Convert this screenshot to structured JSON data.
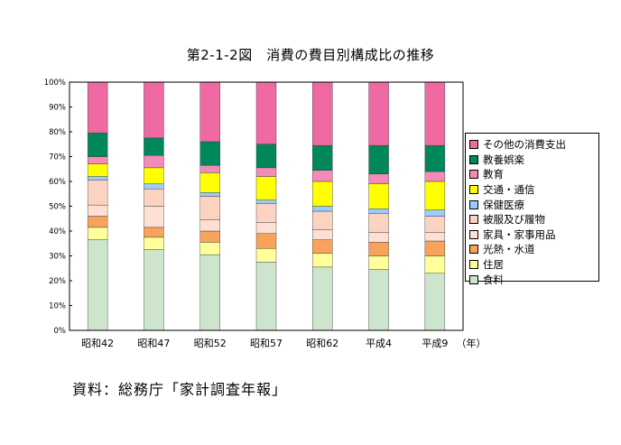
{
  "title": "第2-1-2図　消費の費目別構成比の推移",
  "source": "資料：総務庁「家計調査年報」",
  "chart_data": {
    "type": "bar",
    "stacked": true,
    "categories": [
      "昭和42",
      "昭和47",
      "昭和52",
      "昭和57",
      "昭和62",
      "平成4",
      "平成9"
    ],
    "x_unit": "（年）",
    "ylim": [
      0,
      100
    ],
    "y_ticks": [
      "0%",
      "10%",
      "20%",
      "30%",
      "40%",
      "50%",
      "60%",
      "70%",
      "80%",
      "90%",
      "100%"
    ],
    "grid": false,
    "legend_position": "right",
    "series": [
      {
        "name": "食料",
        "color": "#cce5cc",
        "values": [
          36.5,
          32.5,
          30.5,
          27.5,
          25.5,
          24.5,
          23.0
        ]
      },
      {
        "name": "住居",
        "color": "#ffff99",
        "values": [
          5.0,
          5.0,
          5.0,
          5.5,
          5.5,
          5.5,
          7.0
        ]
      },
      {
        "name": "光熱・水道",
        "color": "#f7a35c",
        "values": [
          4.5,
          4.0,
          4.5,
          6.0,
          5.5,
          5.5,
          6.0
        ]
      },
      {
        "name": "家具・家事用品",
        "color": "#fde0d3",
        "values": [
          4.5,
          8.5,
          4.5,
          4.5,
          4.0,
          4.0,
          3.5
        ]
      },
      {
        "name": "被服及び履物",
        "color": "#fcd3c1",
        "values": [
          10.0,
          7.0,
          9.5,
          7.5,
          7.5,
          7.5,
          6.5
        ]
      },
      {
        "name": "保健医療",
        "color": "#99ccff",
        "values": [
          1.5,
          2.0,
          1.5,
          1.5,
          2.0,
          2.0,
          2.5
        ]
      },
      {
        "name": "交通・通信",
        "color": "#ffff00",
        "values": [
          5.0,
          6.5,
          8.0,
          9.5,
          10.0,
          10.0,
          11.5
        ]
      },
      {
        "name": "教育",
        "color": "#f38bb8",
        "values": [
          3.0,
          5.0,
          3.0,
          3.5,
          4.5,
          4.0,
          4.0
        ]
      },
      {
        "name": "教養娯楽",
        "color": "#00875a",
        "values": [
          9.5,
          7.0,
          9.5,
          9.5,
          10.0,
          11.5,
          10.5
        ]
      },
      {
        "name": "その他の消費支出",
        "color": "#ef6aa2",
        "values": [
          20.5,
          22.5,
          24.0,
          25.0,
          25.5,
          25.5,
          25.5
        ]
      }
    ]
  }
}
